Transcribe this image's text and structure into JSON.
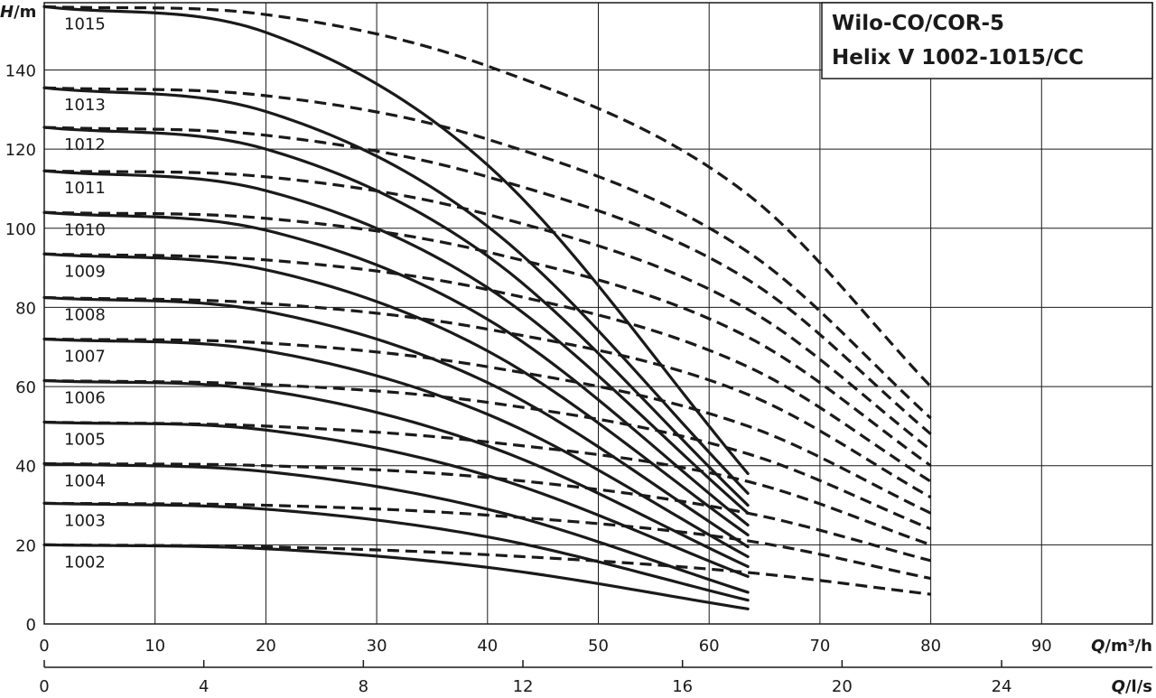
{
  "title_lines": [
    "Wilo-CO/COR-5",
    "Helix V 1002-1015/CC"
  ],
  "axes": {
    "y_label_var": "H",
    "y_label_unit": "/m",
    "x_label_var": "Q",
    "x_label_unit": "/m³/h",
    "x2_label_var": "Q",
    "x2_label_unit": "/l/s",
    "x_ticks": [
      "0",
      "10",
      "20",
      "30",
      "40",
      "50",
      "60",
      "70",
      "80",
      "90"
    ],
    "x2_ticks": [
      "0",
      "4",
      "8",
      "12",
      "16",
      "20",
      "24"
    ],
    "y_ticks": [
      "0",
      "20",
      "40",
      "60",
      "80",
      "100",
      "120",
      "140"
    ]
  },
  "chart_data": {
    "type": "line",
    "title": "Wilo-CO/COR-5 Helix V 1002-1015/CC",
    "xlabel": "Q/m³/h",
    "x2label": "Q/l/s",
    "ylabel": "H/m",
    "xlim": [
      0,
      100
    ],
    "ylim": [
      0,
      157
    ],
    "x2lim": [
      0,
      27.78
    ],
    "grid": true,
    "x_tick_values": [
      0,
      10,
      20,
      30,
      40,
      50,
      60,
      70,
      80,
      90
    ],
    "x2_tick_values": [
      0,
      4,
      8,
      12,
      16,
      20,
      24
    ],
    "y_tick_values": [
      0,
      20,
      40,
      60,
      80,
      100,
      120,
      140
    ],
    "series": [
      {
        "name": "1002",
        "solid_x": [
          0,
          20,
          40,
          63.5
        ],
        "solid_y": [
          20,
          19,
          14.3,
          3.8
        ],
        "dashed_x": [
          0,
          20,
          40,
          63.5,
          80
        ],
        "dashed_y": [
          20,
          19.5,
          17.5,
          13,
          7.5
        ]
      },
      {
        "name": "1003",
        "solid_x": [
          0,
          20,
          40,
          63.5
        ],
        "solid_y": [
          30.5,
          29,
          22,
          6
        ],
        "dashed_x": [
          0,
          20,
          40,
          63.5,
          80
        ],
        "dashed_y": [
          30.5,
          30,
          27.5,
          21,
          11.5
        ]
      },
      {
        "name": "1004",
        "solid_x": [
          0,
          20,
          40,
          63.5
        ],
        "solid_y": [
          40.5,
          38.5,
          29,
          8
        ],
        "dashed_x": [
          0,
          20,
          40,
          63.5,
          80
        ],
        "dashed_y": [
          40.5,
          40,
          37,
          28,
          16
        ]
      },
      {
        "name": "1005",
        "solid_x": [
          0,
          20,
          40,
          63.5
        ],
        "solid_y": [
          51,
          49,
          37.5,
          12
        ],
        "dashed_x": [
          0,
          20,
          40,
          63.5,
          80
        ],
        "dashed_y": [
          51,
          50,
          46,
          36,
          20
        ]
      },
      {
        "name": "1006",
        "solid_x": [
          0,
          20,
          40,
          63.5
        ],
        "solid_y": [
          61.5,
          59,
          45,
          14.5
        ],
        "dashed_x": [
          0,
          20,
          40,
          63.5,
          80
        ],
        "dashed_y": [
          61.5,
          60.5,
          56,
          43,
          24
        ]
      },
      {
        "name": "1007",
        "solid_x": [
          0,
          20,
          40,
          63.5
        ],
        "solid_y": [
          72,
          69,
          53,
          17
        ],
        "dashed_x": [
          0,
          20,
          40,
          63.5,
          80
        ],
        "dashed_y": [
          72,
          71,
          65,
          50,
          28
        ]
      },
      {
        "name": "1008",
        "solid_x": [
          0,
          20,
          40,
          63.5
        ],
        "solid_y": [
          82.5,
          79,
          61,
          19.5
        ],
        "dashed_x": [
          0,
          20,
          40,
          63.5,
          80
        ],
        "dashed_y": [
          82.5,
          81,
          74.5,
          58,
          32
        ]
      },
      {
        "name": "1009",
        "solid_x": [
          0,
          20,
          40,
          63.5
        ],
        "solid_y": [
          93.5,
          89.5,
          69,
          22.5
        ],
        "dashed_x": [
          0,
          20,
          40,
          63.5,
          80
        ],
        "dashed_y": [
          93.5,
          92,
          84.5,
          65,
          36
        ]
      },
      {
        "name": "1010",
        "solid_x": [
          0,
          20,
          40,
          63.5
        ],
        "solid_y": [
          104,
          99.5,
          77,
          25
        ],
        "dashed_x": [
          0,
          20,
          40,
          63.5,
          80
        ],
        "dashed_y": [
          104,
          102.5,
          94,
          72.5,
          40
        ]
      },
      {
        "name": "1011",
        "solid_x": [
          0,
          20,
          40,
          63.5
        ],
        "solid_y": [
          114.5,
          109.5,
          85,
          28
        ],
        "dashed_x": [
          0,
          20,
          40,
          63.5,
          80
        ],
        "dashed_y": [
          114.5,
          113,
          103.5,
          79.5,
          44
        ]
      },
      {
        "name": "1012",
        "solid_x": [
          0,
          20,
          40,
          63.5
        ],
        "solid_y": [
          125.5,
          120,
          93,
          30
        ],
        "dashed_x": [
          0,
          20,
          40,
          63.5,
          80
        ],
        "dashed_y": [
          125.5,
          123.5,
          113,
          87,
          48
        ]
      },
      {
        "name": "1013",
        "solid_x": [
          0,
          20,
          40,
          63.5
        ],
        "solid_y": [
          135.5,
          129.5,
          100.5,
          33
        ],
        "dashed_x": [
          0,
          20,
          40,
          63.5,
          80
        ],
        "dashed_y": [
          135.5,
          133.5,
          122.5,
          94,
          52
        ]
      },
      {
        "name": "1015",
        "solid_x": [
          0,
          20,
          40,
          63.5
        ],
        "solid_y": [
          156,
          149.5,
          116,
          38
        ],
        "dashed_x": [
          0,
          20,
          40,
          63.5,
          80
        ],
        "dashed_y": [
          156,
          154,
          141,
          108.5,
          60
        ]
      }
    ]
  }
}
